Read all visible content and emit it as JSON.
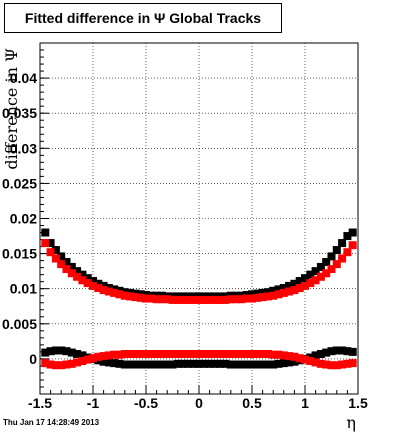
{
  "chart_data": {
    "type": "scatter",
    "title": "Fitted difference in Ψ   Global Tracks",
    "xlabel": "η",
    "ylabel": "difference in Ψ",
    "xlim": [
      -1.5,
      1.5
    ],
    "ylim": [
      -0.005,
      0.045
    ],
    "xticks": [
      "-1.5",
      "-1",
      "-0.5",
      "0",
      "0.5",
      "1",
      "1.5"
    ],
    "yticks": [
      "0",
      "0.005",
      "0.01",
      "0.015",
      "0.02",
      "0.025",
      "0.03",
      "0.035",
      "0.04"
    ],
    "grid": true,
    "series": [
      {
        "color": "#000000",
        "x": [
          -1.45,
          -1.4,
          -1.35,
          -1.3,
          -1.25,
          -1.2,
          -1.15,
          -1.1,
          -1.05,
          -1.0,
          -0.95,
          -0.9,
          -0.85,
          -0.8,
          -0.75,
          -0.7,
          -0.65,
          -0.6,
          -0.55,
          -0.5,
          -0.45,
          -0.4,
          -0.35,
          -0.3,
          -0.25,
          -0.2,
          -0.15,
          -0.1,
          -0.05,
          0.0,
          0.05,
          0.1,
          0.15,
          0.2,
          0.25,
          0.3,
          0.35,
          0.4,
          0.45,
          0.5,
          0.55,
          0.6,
          0.65,
          0.7,
          0.75,
          0.8,
          0.85,
          0.9,
          0.95,
          1.0,
          1.05,
          1.1,
          1.15,
          1.2,
          1.25,
          1.3,
          1.35,
          1.4,
          1.45
        ],
        "y": [
          0.018,
          0.0165,
          0.0155,
          0.0146,
          0.0138,
          0.0131,
          0.0125,
          0.012,
          0.0115,
          0.0111,
          0.0107,
          0.0104,
          0.0101,
          0.0099,
          0.0097,
          0.0095,
          0.0094,
          0.0093,
          0.0092,
          0.0091,
          0.009,
          0.009,
          0.009,
          0.0089,
          0.0089,
          0.0089,
          0.0089,
          0.0089,
          0.0089,
          0.0089,
          0.0089,
          0.0089,
          0.0089,
          0.0089,
          0.0089,
          0.009,
          0.009,
          0.009,
          0.0091,
          0.0092,
          0.0093,
          0.0094,
          0.0095,
          0.0097,
          0.0099,
          0.0101,
          0.0104,
          0.0107,
          0.0111,
          0.0115,
          0.012,
          0.0125,
          0.0131,
          0.0138,
          0.0146,
          0.0155,
          0.0165,
          0.0175,
          0.018
        ]
      },
      {
        "color": "#ff0000",
        "x": [
          -1.45,
          -1.4,
          -1.35,
          -1.3,
          -1.25,
          -1.2,
          -1.15,
          -1.1,
          -1.05,
          -1.0,
          -0.95,
          -0.9,
          -0.85,
          -0.8,
          -0.75,
          -0.7,
          -0.65,
          -0.6,
          -0.55,
          -0.5,
          -0.45,
          -0.4,
          -0.35,
          -0.3,
          -0.25,
          -0.2,
          -0.15,
          -0.1,
          -0.05,
          0.0,
          0.05,
          0.1,
          0.15,
          0.2,
          0.25,
          0.3,
          0.35,
          0.4,
          0.45,
          0.5,
          0.55,
          0.6,
          0.65,
          0.7,
          0.75,
          0.8,
          0.85,
          0.9,
          0.95,
          1.0,
          1.05,
          1.1,
          1.15,
          1.2,
          1.25,
          1.3,
          1.35,
          1.4,
          1.45
        ],
        "y": [
          0.0165,
          0.0152,
          0.0143,
          0.0135,
          0.0128,
          0.0122,
          0.0117,
          0.0112,
          0.0108,
          0.0104,
          0.0101,
          0.0098,
          0.0096,
          0.0094,
          0.0092,
          0.009,
          0.0089,
          0.0088,
          0.0087,
          0.0086,
          0.0086,
          0.0085,
          0.0085,
          0.0085,
          0.0084,
          0.0084,
          0.0084,
          0.0084,
          0.0084,
          0.0084,
          0.0084,
          0.0084,
          0.0084,
          0.0084,
          0.0084,
          0.0085,
          0.0085,
          0.0085,
          0.0086,
          0.0086,
          0.0087,
          0.0088,
          0.0089,
          0.009,
          0.0092,
          0.0094,
          0.0096,
          0.0098,
          0.0101,
          0.0104,
          0.0108,
          0.0112,
          0.0117,
          0.0122,
          0.0128,
          0.0135,
          0.0143,
          0.0152,
          0.0162
        ]
      },
      {
        "color": "#000000",
        "x": [
          -1.45,
          -1.4,
          -1.35,
          -1.3,
          -1.25,
          -1.2,
          -1.15,
          -1.1,
          -1.05,
          -1.0,
          -0.95,
          -0.9,
          -0.85,
          -0.8,
          -0.75,
          -0.7,
          -0.65,
          -0.6,
          -0.55,
          -0.5,
          -0.45,
          -0.4,
          -0.35,
          -0.3,
          -0.25,
          -0.2,
          -0.15,
          -0.1,
          -0.05,
          0.0,
          0.05,
          0.1,
          0.15,
          0.2,
          0.25,
          0.3,
          0.35,
          0.4,
          0.45,
          0.5,
          0.55,
          0.6,
          0.65,
          0.7,
          0.75,
          0.8,
          0.85,
          0.9,
          0.95,
          1.0,
          1.05,
          1.1,
          1.15,
          1.2,
          1.25,
          1.3,
          1.35,
          1.4,
          1.45
        ],
        "y": [
          0.0009,
          0.0011,
          0.0012,
          0.0012,
          0.0011,
          0.0009,
          0.0007,
          0.0005,
          0.0002,
          0.0,
          -0.0002,
          -0.0004,
          -0.0005,
          -0.0006,
          -0.0007,
          -0.0008,
          -0.0008,
          -0.0008,
          -0.0008,
          -0.0008,
          -0.0008,
          -0.0008,
          -0.0008,
          -0.0008,
          -0.0008,
          -0.0007,
          -0.0007,
          -0.0007,
          -0.0007,
          -0.0007,
          -0.0007,
          -0.0007,
          -0.0007,
          -0.0007,
          -0.0007,
          -0.0008,
          -0.0008,
          -0.0008,
          -0.0008,
          -0.0008,
          -0.0008,
          -0.0008,
          -0.0008,
          -0.0008,
          -0.0007,
          -0.0006,
          -0.0005,
          -0.0004,
          -0.0002,
          0.0,
          0.0002,
          0.0005,
          0.0007,
          0.0009,
          0.0011,
          0.0012,
          0.0012,
          0.0011,
          0.001
        ]
      },
      {
        "color": "#ff0000",
        "x": [
          -1.45,
          -1.4,
          -1.35,
          -1.3,
          -1.25,
          -1.2,
          -1.15,
          -1.1,
          -1.05,
          -1.0,
          -0.95,
          -0.9,
          -0.85,
          -0.8,
          -0.75,
          -0.7,
          -0.65,
          -0.6,
          -0.55,
          -0.5,
          -0.45,
          -0.4,
          -0.35,
          -0.3,
          -0.25,
          -0.2,
          -0.15,
          -0.1,
          -0.05,
          0.0,
          0.05,
          0.1,
          0.15,
          0.2,
          0.25,
          0.3,
          0.35,
          0.4,
          0.45,
          0.5,
          0.55,
          0.6,
          0.65,
          0.7,
          0.75,
          0.8,
          0.85,
          0.9,
          0.95,
          1.0,
          1.05,
          1.1,
          1.15,
          1.2,
          1.25,
          1.3,
          1.35,
          1.4,
          1.45
        ],
        "y": [
          -0.0006,
          -0.0008,
          -0.0009,
          -0.0009,
          -0.0008,
          -0.0007,
          -0.0005,
          -0.0003,
          -0.0001,
          0.0001,
          0.0003,
          0.0004,
          0.0005,
          0.0006,
          0.0006,
          0.0007,
          0.0007,
          0.0007,
          0.0007,
          0.0007,
          0.0007,
          0.0007,
          0.0007,
          0.0007,
          0.0007,
          0.0007,
          0.0007,
          0.0007,
          0.0007,
          0.0007,
          0.0007,
          0.0007,
          0.0007,
          0.0007,
          0.0007,
          0.0007,
          0.0007,
          0.0007,
          0.0007,
          0.0007,
          0.0007,
          0.0007,
          0.0007,
          0.0006,
          0.0006,
          0.0005,
          0.0004,
          0.0003,
          0.0001,
          -0.0001,
          -0.0003,
          -0.0005,
          -0.0007,
          -0.0008,
          -0.0009,
          -0.0009,
          -0.0008,
          -0.0007,
          -0.0006
        ]
      }
    ]
  },
  "footer": {
    "timestamp": "Thu Jan 17 14:28:49 2013"
  }
}
